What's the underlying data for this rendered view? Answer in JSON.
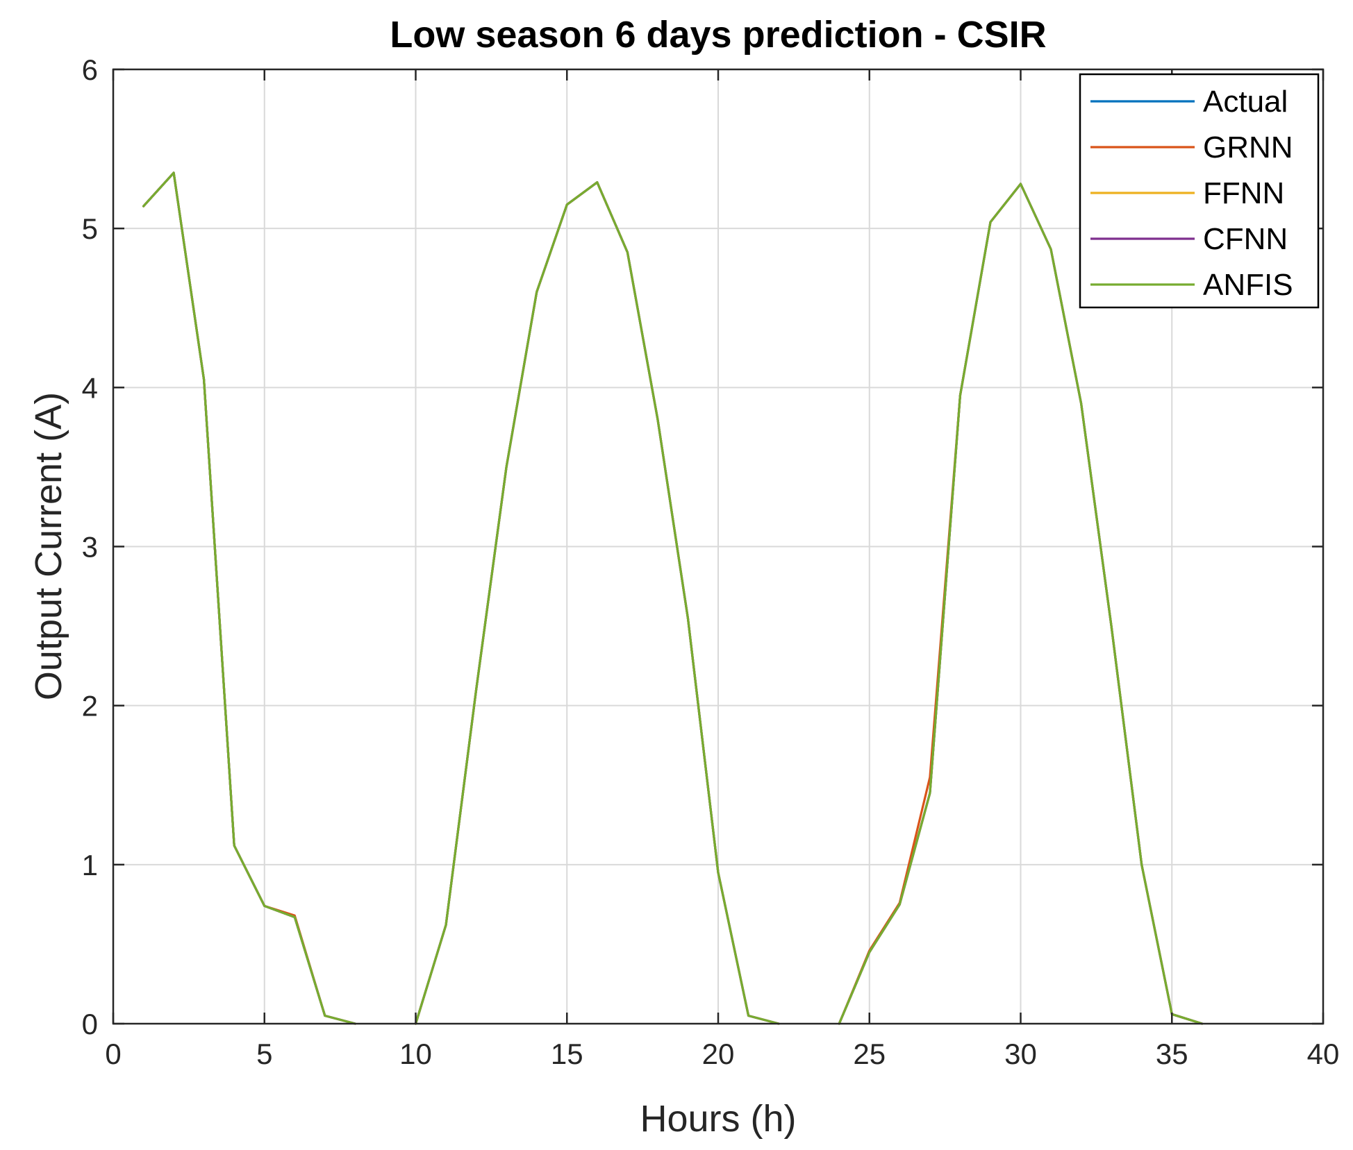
{
  "chart_data": {
    "type": "line",
    "title": "Low season 6 days prediction - CSIR",
    "xlabel": "Hours (h)",
    "ylabel": "Output Current (A)",
    "xlim": [
      0,
      40
    ],
    "ylim": [
      0,
      6
    ],
    "xticks": [
      0,
      5,
      10,
      15,
      20,
      25,
      30,
      35,
      40
    ],
    "yticks": [
      0,
      1,
      2,
      3,
      4,
      5,
      6
    ],
    "grid": true,
    "legend_position": "top-right",
    "series": [
      {
        "name": "Actual",
        "color": "#0072BD",
        "x": [
          1,
          2,
          3,
          4,
          5,
          6,
          7,
          8,
          null,
          10,
          11,
          12,
          13,
          14,
          15,
          16,
          17,
          18,
          19,
          20,
          21,
          22,
          null,
          24,
          25,
          26,
          27,
          28,
          29,
          30,
          31,
          32,
          33,
          34,
          35,
          36
        ],
        "y": [
          5.14,
          5.35,
          4.05,
          1.12,
          0.74,
          0.67,
          0.05,
          0,
          null,
          0,
          0.62,
          2.1,
          3.5,
          4.6,
          5.15,
          5.29,
          4.85,
          3.8,
          2.55,
          0.95,
          0.05,
          0,
          null,
          0,
          0.45,
          0.75,
          1.45,
          3.95,
          5.04,
          5.28,
          4.87,
          3.9,
          2.5,
          1.0,
          0.06,
          0
        ]
      },
      {
        "name": "GRNN",
        "color": "#D95319",
        "x": [
          1,
          2,
          3,
          4,
          5,
          6,
          7,
          8,
          null,
          10,
          11,
          12,
          13,
          14,
          15,
          16,
          17,
          18,
          19,
          20,
          21,
          22,
          null,
          24,
          25,
          26,
          27,
          28,
          29,
          30,
          31,
          32,
          33,
          34,
          35,
          36
        ],
        "y": [
          5.14,
          5.35,
          4.05,
          1.12,
          0.74,
          0.68,
          0.05,
          0,
          null,
          0,
          0.62,
          2.1,
          3.5,
          4.6,
          5.15,
          5.29,
          4.85,
          3.8,
          2.55,
          0.95,
          0.05,
          0,
          null,
          0,
          0.46,
          0.76,
          1.55,
          3.95,
          5.04,
          5.28,
          4.87,
          3.9,
          2.5,
          1.0,
          0.06,
          0
        ]
      },
      {
        "name": "FFNN",
        "color": "#EDB120",
        "x": [
          1,
          2,
          3,
          4,
          5,
          6,
          7,
          8,
          null,
          10,
          11,
          12,
          13,
          14,
          15,
          16,
          17,
          18,
          19,
          20,
          21,
          22,
          null,
          24,
          25,
          26,
          27,
          28,
          29,
          30,
          31,
          32,
          33,
          34,
          35,
          36
        ],
        "y": [
          5.14,
          5.35,
          4.05,
          1.12,
          0.74,
          0.67,
          0.05,
          0,
          null,
          0,
          0.62,
          2.1,
          3.5,
          4.6,
          5.15,
          5.29,
          4.85,
          3.8,
          2.55,
          0.95,
          0.05,
          0,
          null,
          0,
          0.45,
          0.75,
          1.45,
          3.95,
          5.04,
          5.28,
          4.87,
          3.9,
          2.5,
          1.0,
          0.06,
          0
        ]
      },
      {
        "name": "CFNN",
        "color": "#7E2F8E",
        "x": [
          1,
          2,
          3,
          4,
          5,
          6,
          7,
          8,
          null,
          10,
          11,
          12,
          13,
          14,
          15,
          16,
          17,
          18,
          19,
          20,
          21,
          22,
          null,
          24,
          25,
          26,
          27,
          28,
          29,
          30,
          31,
          32,
          33,
          34,
          35,
          36
        ],
        "y": [
          5.14,
          5.35,
          4.05,
          1.12,
          0.74,
          0.67,
          0.05,
          0,
          null,
          0,
          0.62,
          2.1,
          3.5,
          4.6,
          5.15,
          5.29,
          4.85,
          3.8,
          2.55,
          0.95,
          0.05,
          0,
          null,
          0,
          0.45,
          0.75,
          1.45,
          3.95,
          5.04,
          5.28,
          4.87,
          3.9,
          2.5,
          1.0,
          0.06,
          0
        ]
      },
      {
        "name": "ANFIS",
        "color": "#77AC30",
        "x": [
          1,
          2,
          3,
          4,
          5,
          6,
          7,
          8,
          null,
          10,
          11,
          12,
          13,
          14,
          15,
          16,
          17,
          18,
          19,
          20,
          21,
          22,
          null,
          24,
          25,
          26,
          27,
          28,
          29,
          30,
          31,
          32,
          33,
          34,
          35,
          36
        ],
        "y": [
          5.14,
          5.35,
          4.05,
          1.12,
          0.74,
          0.67,
          0.05,
          0,
          null,
          0,
          0.62,
          2.1,
          3.5,
          4.6,
          5.15,
          5.29,
          4.85,
          3.8,
          2.55,
          0.95,
          0.05,
          0,
          null,
          0,
          0.45,
          0.75,
          1.45,
          3.95,
          5.04,
          5.28,
          4.87,
          3.9,
          2.5,
          1.0,
          0.06,
          0
        ]
      }
    ]
  }
}
